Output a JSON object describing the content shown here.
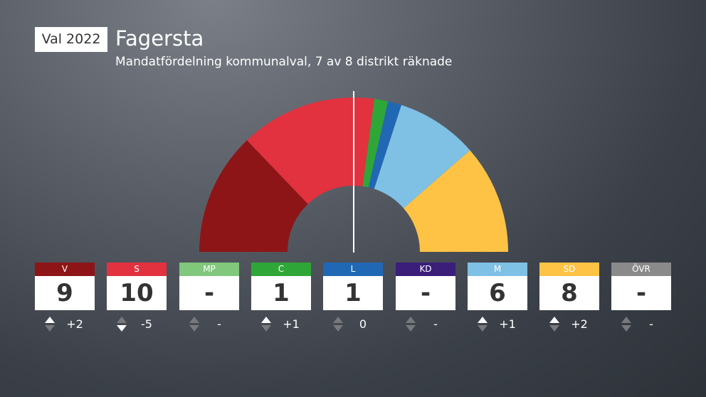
{
  "header": {
    "badge": "Val 2022",
    "title": "Fagersta",
    "subtitle": "Mandatfördelning kommunalval, 7 av 8 distrikt räknade"
  },
  "chart_data": {
    "type": "parliament-semicircle",
    "total_seats": 35,
    "majority_line": true,
    "parties": [
      {
        "name": "V",
        "seats": 9,
        "seats_label": "9",
        "change": "+2",
        "direction": "up",
        "color": "#8e1517",
        "label_color": "#8e1517"
      },
      {
        "name": "S",
        "seats": 10,
        "seats_label": "10",
        "change": "-5",
        "direction": "down",
        "color": "#e2323f",
        "label_color": "#e2323f"
      },
      {
        "name": "MP",
        "seats": 0,
        "seats_label": "-",
        "change": "-",
        "direction": "none",
        "color": "#81c77c",
        "label_color": "#81c77c"
      },
      {
        "name": "C",
        "seats": 1,
        "seats_label": "1",
        "change": "+1",
        "direction": "up",
        "color": "#2fa738",
        "label_color": "#2fa738"
      },
      {
        "name": "L",
        "seats": 1,
        "seats_label": "1",
        "change": "0",
        "direction": "none",
        "color": "#2068b4",
        "label_color": "#2068b4"
      },
      {
        "name": "KD",
        "seats": 0,
        "seats_label": "-",
        "change": "-",
        "direction": "none",
        "color": "#3b1e7a",
        "label_color": "#3b1e7a"
      },
      {
        "name": "M",
        "seats": 6,
        "seats_label": "6",
        "change": "+1",
        "direction": "up",
        "color": "#7fc0e5",
        "label_color": "#7fc0e5"
      },
      {
        "name": "SD",
        "seats": 8,
        "seats_label": "8",
        "change": "+2",
        "direction": "up",
        "color": "#fec345",
        "label_color": "#fec345"
      },
      {
        "name": "ÖVR",
        "seats": 0,
        "seats_label": "-",
        "change": "-",
        "direction": "none",
        "color": "#8a8a8a",
        "label_color": "#8a8a8a"
      }
    ]
  }
}
